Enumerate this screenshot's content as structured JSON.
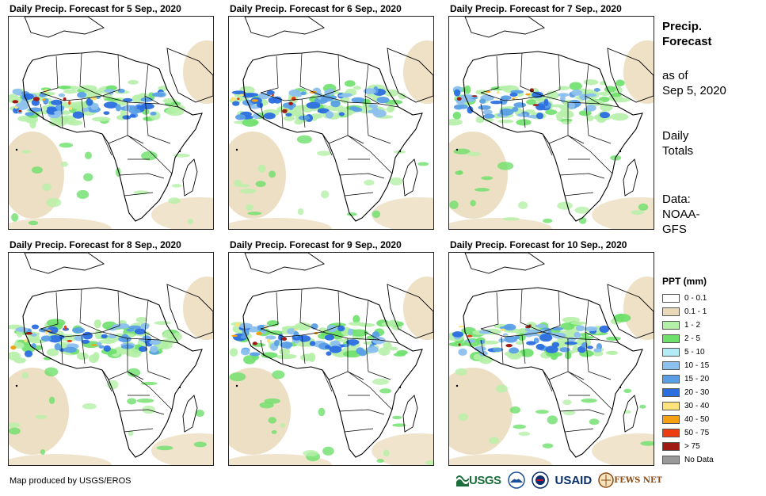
{
  "panels": [
    {
      "title": "Daily Precip. Forecast for 5 Sep., 2020",
      "wet_intensity": 1.0
    },
    {
      "title": "Daily Precip. Forecast for 6 Sep., 2020",
      "wet_intensity": 0.95
    },
    {
      "title": "Daily Precip. Forecast for 7 Sep., 2020",
      "wet_intensity": 0.85
    },
    {
      "title": "Daily Precip. Forecast for 8 Sep., 2020",
      "wet_intensity": 0.8
    },
    {
      "title": "Daily Precip. Forecast for 9 Sep., 2020",
      "wet_intensity": 0.9
    },
    {
      "title": "Daily Precip. Forecast for 10 Sep., 2020",
      "wet_intensity": 0.85
    }
  ],
  "side": {
    "heading_line1": "Precip.",
    "heading_line2": "Forecast",
    "asof_line1": "as of",
    "asof_line2": "Sep 5, 2020",
    "totals_line1": "Daily",
    "totals_line2": "Totals",
    "source_line1": "Data:",
    "source_line2": "NOAA-",
    "source_line3": "GFS"
  },
  "legend": {
    "title": "PPT (mm)",
    "items": [
      {
        "label": "0 - 0.1",
        "color": "#ffffff"
      },
      {
        "label": "0.1 - 1",
        "color": "#ead9b8"
      },
      {
        "label": "1 - 2",
        "color": "#b5f0a8"
      },
      {
        "label": "2 - 5",
        "color": "#6de06a"
      },
      {
        "label": "5 - 10",
        "color": "#b3ecf5"
      },
      {
        "label": "10 - 15",
        "color": "#8cc0ee"
      },
      {
        "label": "15 - 20",
        "color": "#5a9fe6"
      },
      {
        "label": "20 - 30",
        "color": "#2a6ee0"
      },
      {
        "label": "30 - 40",
        "color": "#fbe27a"
      },
      {
        "label": "40 - 50",
        "color": "#f5a012"
      },
      {
        "label": "50 - 75",
        "color": "#ec3c10"
      },
      {
        "label": "> 75",
        "color": "#9e1a12"
      },
      {
        "label": "No Data",
        "color": "#999999"
      }
    ]
  },
  "credit": "Map produced by USGS/EROS",
  "logos": {
    "usgs": "USGS",
    "usaid": "USAID",
    "fews": "FEWS NET"
  }
}
